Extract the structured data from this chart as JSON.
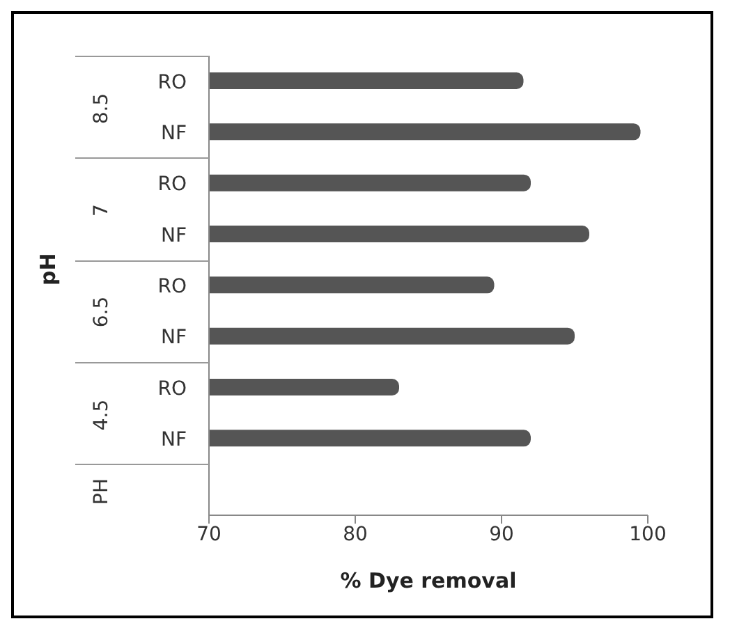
{
  "chart_data": {
    "type": "bar",
    "orientation": "horizontal",
    "xlabel": "% Dye removal",
    "ylabel": "pH",
    "categories": [
      "RO",
      "NF",
      "RO",
      "NF",
      "RO",
      "NF",
      "RO",
      "NF",
      null
    ],
    "values": [
      91.5,
      99.5,
      92,
      96,
      89.5,
      95,
      83,
      92,
      null
    ],
    "color": "#555555",
    "xlim": [
      70,
      100
    ],
    "xticks": [
      70,
      80,
      90,
      100
    ],
    "annotations": [
      "8.5",
      "7",
      "6.5",
      "4.5",
      "PH"
    ]
  }
}
